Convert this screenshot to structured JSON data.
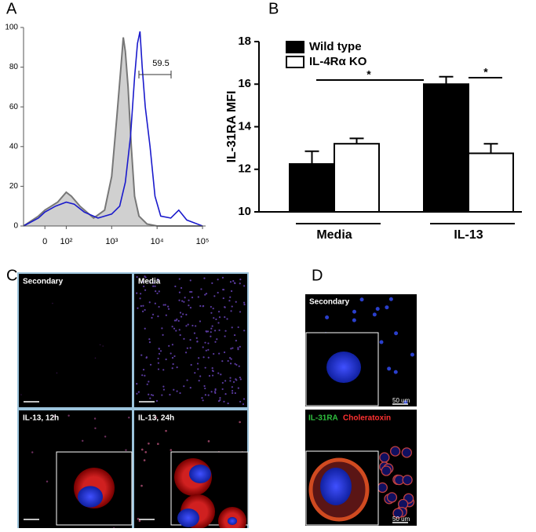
{
  "panel_labels": [
    "A",
    "B",
    "C",
    "D"
  ],
  "chart_data": [
    {
      "type": "line",
      "xscale": "logicle",
      "xlim": [
        -100,
        117000
      ],
      "ylim": [
        0,
        100
      ],
      "xticks": [
        0,
        {
          "value": 100,
          "label": "10²"
        },
        {
          "value": 1000,
          "label": "10³"
        },
        {
          "value": 10000,
          "label": "10⁴"
        },
        {
          "value": 100000,
          "label": "10⁵"
        }
      ],
      "yticks": [
        0,
        20,
        40,
        60,
        80,
        100
      ],
      "gate_label": "59.5",
      "series": [
        {
          "color": "#777777",
          "fill": "#d0d0d0",
          "x": [
            -100,
            -30,
            0,
            30,
            60,
            100,
            130,
            200,
            400,
            700,
            1000,
            1300,
            1600,
            1800,
            2000,
            2300,
            2700,
            3200,
            4000,
            6000,
            10000,
            100000
          ],
          "values": [
            0,
            5,
            8,
            10,
            12,
            17,
            15,
            10,
            4,
            8,
            25,
            55,
            80,
            95,
            88,
            70,
            40,
            15,
            5,
            1,
            0,
            0
          ]
        },
        {
          "color": "#1a1acc",
          "x": [
            -100,
            -30,
            0,
            50,
            100,
            150,
            250,
            500,
            1000,
            1500,
            2000,
            2600,
            3200,
            3700,
            4200,
            4700,
            5500,
            7000,
            9000,
            12000,
            20000,
            30000,
            45000,
            100000
          ],
          "values": [
            0,
            4,
            7,
            10,
            12,
            11,
            7,
            4,
            6,
            10,
            22,
            45,
            75,
            92,
            98,
            80,
            60,
            40,
            15,
            5,
            4,
            8,
            3,
            0
          ]
        }
      ]
    },
    {
      "type": "bar",
      "y_label": "IL-31RA  MFI",
      "categories": [
        "Media",
        "IL-13"
      ],
      "ylim": [
        10,
        18
      ],
      "yticks": [
        10,
        12,
        14,
        16,
        18
      ],
      "series": [
        {
          "name": "Wild type",
          "color": "#000000",
          "values": [
            12.25,
            16.0
          ],
          "errors": [
            0.6,
            0.35
          ]
        },
        {
          "name": "IL-4Rα KO",
          "color": "#ffffff",
          "values": [
            13.2,
            12.75
          ],
          "errors": [
            0.25,
            0.45
          ]
        }
      ],
      "annotations": [
        "*",
        "*"
      ]
    }
  ],
  "panel_c": {
    "tiles": [
      "Secondary",
      "Media",
      "IL-13, 12h",
      "IL-13, 24h"
    ]
  },
  "panel_d": {
    "top_label": "Secondary",
    "top_scale": "50 um",
    "bottom_labels": [
      "IL-31RA",
      "Choleratoxin"
    ],
    "bottom_scale": "50 um"
  }
}
